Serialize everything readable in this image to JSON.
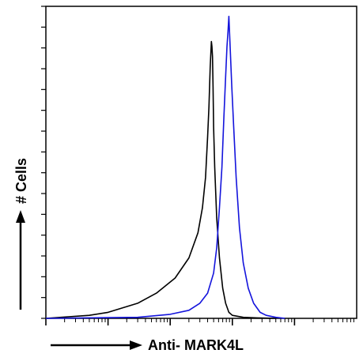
{
  "chart_data": {
    "type": "line",
    "title": "",
    "xlabel": "Anti- MARK4L",
    "ylabel": "# Cells",
    "x_scale": "log",
    "grid": false,
    "legend": "none",
    "series": [
      {
        "color": "#000000",
        "x": [
          1,
          5,
          10,
          30,
          60,
          120,
          200,
          280,
          330,
          370,
          400,
          420,
          440,
          460,
          470,
          480,
          490,
          500,
          520,
          560,
          620,
          700,
          780,
          880,
          1000,
          1500,
          2500,
          5000
        ],
        "y": [
          0,
          0.3,
          0.6,
          1.5,
          2.5,
          4.0,
          6.0,
          8.5,
          11.0,
          14.0,
          18.0,
          21.0,
          25.0,
          27.5,
          27.0,
          26.0,
          23.0,
          19.0,
          15.0,
          10.0,
          6.0,
          3.0,
          1.5,
          0.6,
          0.3,
          0.1,
          0.05,
          0
        ]
      },
      {
        "color": "#1414dc",
        "x": [
          1,
          30,
          100,
          200,
          300,
          400,
          500,
          560,
          620,
          680,
          730,
          780,
          820,
          850,
          880,
          920,
          980,
          1050,
          1150,
          1300,
          1500,
          1800,
          2200,
          2800,
          3500,
          5000,
          7000
        ],
        "y": [
          0,
          0.1,
          0.4,
          0.8,
          1.5,
          2.5,
          4.5,
          7.0,
          11.0,
          15.0,
          20.0,
          24.0,
          27.0,
          28.5,
          30.0,
          27.0,
          23.0,
          19.0,
          14.0,
          9.0,
          5.5,
          3.0,
          1.5,
          0.6,
          0.3,
          0.1,
          0
        ]
      }
    ],
    "xlim": [
      1,
      100000
    ],
    "ylim": [
      0,
      31
    ]
  }
}
